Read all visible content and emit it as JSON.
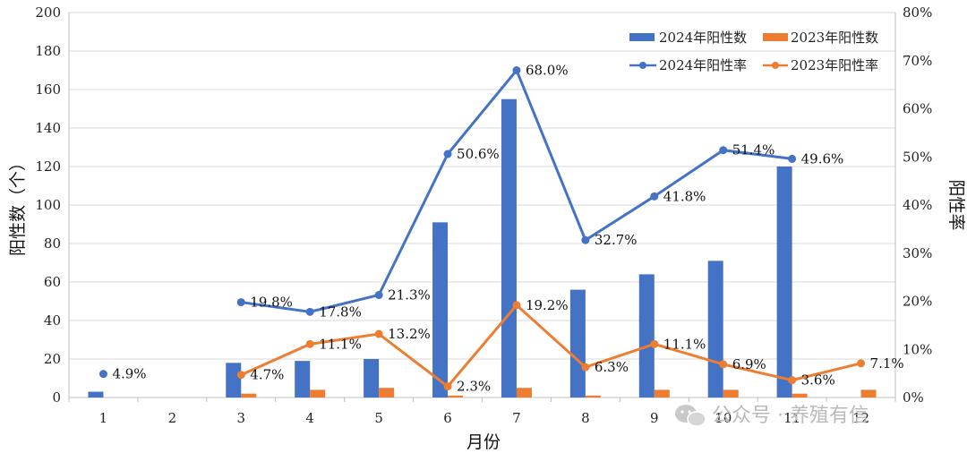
{
  "chart_data": {
    "type": "bar+line",
    "title": "",
    "xlabel": "月份",
    "ylabel_left": "阳性数（个）",
    "ylabel_right": "阳性率",
    "categories": [
      "1",
      "2",
      "3",
      "4",
      "5",
      "6",
      "7",
      "8",
      "9",
      "10",
      "11",
      "12"
    ],
    "y_left_ticks": [
      "0",
      "20",
      "40",
      "60",
      "80",
      "100",
      "120",
      "140",
      "160",
      "180",
      "200"
    ],
    "y_right_ticks": [
      "0%",
      "10%",
      "20%",
      "30%",
      "40%",
      "50%",
      "60%",
      "70%",
      "80%"
    ],
    "ylim_left": [
      0,
      200
    ],
    "ylim_right": [
      0,
      80
    ],
    "legend_position": "top-right",
    "series_bars": [
      {
        "name": "2024年阳性数",
        "color": "#4472c4",
        "values": [
          3,
          null,
          18,
          19,
          20,
          91,
          155,
          56,
          64,
          71,
          120,
          null
        ]
      },
      {
        "name": "2023年阳性数",
        "color": "#ed7d31",
        "values": [
          null,
          null,
          2,
          4,
          5,
          1,
          5,
          1,
          4,
          4,
          2,
          4
        ]
      }
    ],
    "series_lines": [
      {
        "name": "2024年阳性率",
        "color": "#4472c4",
        "values": [
          4.9,
          null,
          19.8,
          17.8,
          21.3,
          50.6,
          68.0,
          32.7,
          41.8,
          51.4,
          49.6,
          null
        ],
        "labels": [
          "4.9%",
          "",
          "19.8%",
          "17.8%",
          "21.3%",
          "50.6%",
          "68.0%",
          "32.7%",
          "41.8%",
          "51.4%",
          "49.6%",
          ""
        ]
      },
      {
        "name": "2023年阳性率",
        "color": "#ed7d31",
        "values": [
          null,
          null,
          4.7,
          11.1,
          13.2,
          2.3,
          19.2,
          6.3,
          11.1,
          6.9,
          3.6,
          7.1
        ],
        "labels": [
          "",
          "",
          "4.7%",
          "11.1%",
          "13.2%",
          "2.3%",
          "19.2%",
          "6.3%",
          "11.1%",
          "6.9%",
          "3.6%",
          "7.1%"
        ]
      }
    ]
  },
  "watermark": {
    "text": "公众号 · 养殖有信",
    "icon": "wechat-icon"
  }
}
